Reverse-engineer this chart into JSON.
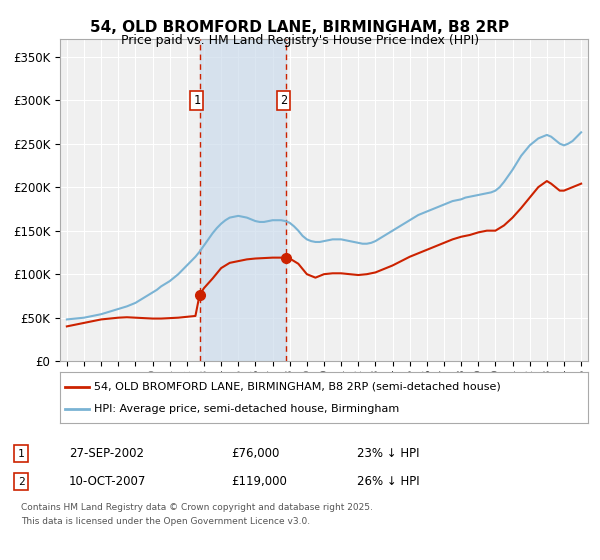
{
  "title": "54, OLD BROMFORD LANE, BIRMINGHAM, B8 2RP",
  "subtitle": "Price paid vs. HM Land Registry's House Price Index (HPI)",
  "ylim": [
    0,
    370000
  ],
  "yticks": [
    0,
    50000,
    100000,
    150000,
    200000,
    250000,
    300000,
    350000
  ],
  "ytick_labels": [
    "£0",
    "£50K",
    "£100K",
    "£150K",
    "£200K",
    "£250K",
    "£300K",
    "£350K"
  ],
  "hpi_color": "#7ab3d4",
  "price_color": "#cc2200",
  "purchase1_date": "27-SEP-2002",
  "purchase1_price": "76,000",
  "purchase1_label": "23% ↓ HPI",
  "purchase2_date": "10-OCT-2007",
  "purchase2_price": "119,000",
  "purchase2_label": "26% ↓ HPI",
  "legend_line1": "54, OLD BROMFORD LANE, BIRMINGHAM, B8 2RP (semi-detached house)",
  "legend_line2": "HPI: Average price, semi-detached house, Birmingham",
  "footnote1": "Contains HM Land Registry data © Crown copyright and database right 2025.",
  "footnote2": "This data is licensed under the Open Government Licence v3.0.",
  "background_color": "#ffffff",
  "plot_bg_color": "#f0f0f0",
  "grid_color": "#ffffff",
  "purchase1_x_year": 2002.74,
  "purchase2_x_year": 2007.78,
  "shade_color": "#ccdcec",
  "xlim_left": 1994.6,
  "xlim_right": 2025.4,
  "years_hpi": [
    1995.0,
    1995.25,
    1995.5,
    1995.75,
    1996.0,
    1996.25,
    1996.5,
    1996.75,
    1997.0,
    1997.25,
    1997.5,
    1997.75,
    1998.0,
    1998.25,
    1998.5,
    1998.75,
    1999.0,
    1999.25,
    1999.5,
    1999.75,
    2000.0,
    2000.25,
    2000.5,
    2000.75,
    2001.0,
    2001.25,
    2001.5,
    2001.75,
    2002.0,
    2002.25,
    2002.5,
    2002.75,
    2003.0,
    2003.25,
    2003.5,
    2003.75,
    2004.0,
    2004.25,
    2004.5,
    2004.75,
    2005.0,
    2005.25,
    2005.5,
    2005.75,
    2006.0,
    2006.25,
    2006.5,
    2006.75,
    2007.0,
    2007.25,
    2007.5,
    2007.75,
    2008.0,
    2008.25,
    2008.5,
    2008.75,
    2009.0,
    2009.25,
    2009.5,
    2009.75,
    2010.0,
    2010.25,
    2010.5,
    2010.75,
    2011.0,
    2011.25,
    2011.5,
    2011.75,
    2012.0,
    2012.25,
    2012.5,
    2012.75,
    2013.0,
    2013.25,
    2013.5,
    2013.75,
    2014.0,
    2014.25,
    2014.5,
    2014.75,
    2015.0,
    2015.25,
    2015.5,
    2015.75,
    2016.0,
    2016.25,
    2016.5,
    2016.75,
    2017.0,
    2017.25,
    2017.5,
    2017.75,
    2018.0,
    2018.25,
    2018.5,
    2018.75,
    2019.0,
    2019.25,
    2019.5,
    2019.75,
    2020.0,
    2020.25,
    2020.5,
    2020.75,
    2021.0,
    2021.25,
    2021.5,
    2021.75,
    2022.0,
    2022.25,
    2022.5,
    2022.75,
    2023.0,
    2023.25,
    2023.5,
    2023.75,
    2024.0,
    2024.25,
    2024.5,
    2024.75,
    2025.0
  ],
  "hpi_values": [
    48000,
    48500,
    49000,
    49500,
    50000,
    51000,
    52000,
    53000,
    54000,
    55500,
    57000,
    58500,
    60000,
    61500,
    63000,
    65000,
    67000,
    70000,
    73000,
    76000,
    79000,
    82000,
    86000,
    89000,
    92000,
    96000,
    100000,
    105000,
    110000,
    115000,
    120000,
    126000,
    133000,
    140000,
    147000,
    153000,
    158000,
    162000,
    165000,
    166000,
    167000,
    166000,
    165000,
    163000,
    161000,
    160000,
    160000,
    161000,
    162000,
    162000,
    162000,
    161000,
    159000,
    155000,
    150000,
    144000,
    140000,
    138000,
    137000,
    137000,
    138000,
    139000,
    140000,
    140000,
    140000,
    139000,
    138000,
    137000,
    136000,
    135000,
    135000,
    136000,
    138000,
    141000,
    144000,
    147000,
    150000,
    153000,
    156000,
    159000,
    162000,
    165000,
    168000,
    170000,
    172000,
    174000,
    176000,
    178000,
    180000,
    182000,
    184000,
    185000,
    186000,
    188000,
    189000,
    190000,
    191000,
    192000,
    193000,
    194000,
    196000,
    200000,
    206000,
    213000,
    220000,
    228000,
    236000,
    242000,
    248000,
    252000,
    256000,
    258000,
    260000,
    258000,
    254000,
    250000,
    248000,
    250000,
    253000,
    258000,
    263000
  ],
  "years_price": [
    1995.0,
    1995.5,
    1996.0,
    1996.5,
    1997.0,
    1997.5,
    1998.0,
    1998.5,
    1999.0,
    1999.5,
    2000.0,
    2000.5,
    2001.0,
    2001.5,
    2002.0,
    2002.5,
    2002.74,
    2003.0,
    2003.5,
    2004.0,
    2004.5,
    2005.0,
    2005.5,
    2006.0,
    2006.5,
    2007.0,
    2007.5,
    2007.78,
    2008.0,
    2008.5,
    2009.0,
    2009.5,
    2010.0,
    2010.5,
    2011.0,
    2011.5,
    2012.0,
    2012.5,
    2013.0,
    2013.5,
    2014.0,
    2014.5,
    2015.0,
    2015.5,
    2016.0,
    2016.5,
    2017.0,
    2017.5,
    2018.0,
    2018.5,
    2019.0,
    2019.5,
    2020.0,
    2020.5,
    2021.0,
    2021.5,
    2022.0,
    2022.5,
    2023.0,
    2023.25,
    2023.5,
    2023.75,
    2024.0,
    2024.25,
    2024.5,
    2025.0
  ],
  "price_values": [
    40000,
    42000,
    44000,
    46000,
    48000,
    49000,
    50000,
    50500,
    50000,
    49500,
    49000,
    49000,
    49500,
    50000,
    51000,
    52000,
    76000,
    84000,
    95000,
    107000,
    113000,
    115000,
    117000,
    118000,
    118500,
    119000,
    119000,
    119000,
    118000,
    112000,
    100000,
    96000,
    100000,
    101000,
    101000,
    100000,
    99000,
    100000,
    102000,
    106000,
    110000,
    115000,
    120000,
    124000,
    128000,
    132000,
    136000,
    140000,
    143000,
    145000,
    148000,
    150000,
    150000,
    156000,
    165000,
    176000,
    188000,
    200000,
    207000,
    204000,
    200000,
    196000,
    196000,
    198000,
    200000,
    204000
  ]
}
